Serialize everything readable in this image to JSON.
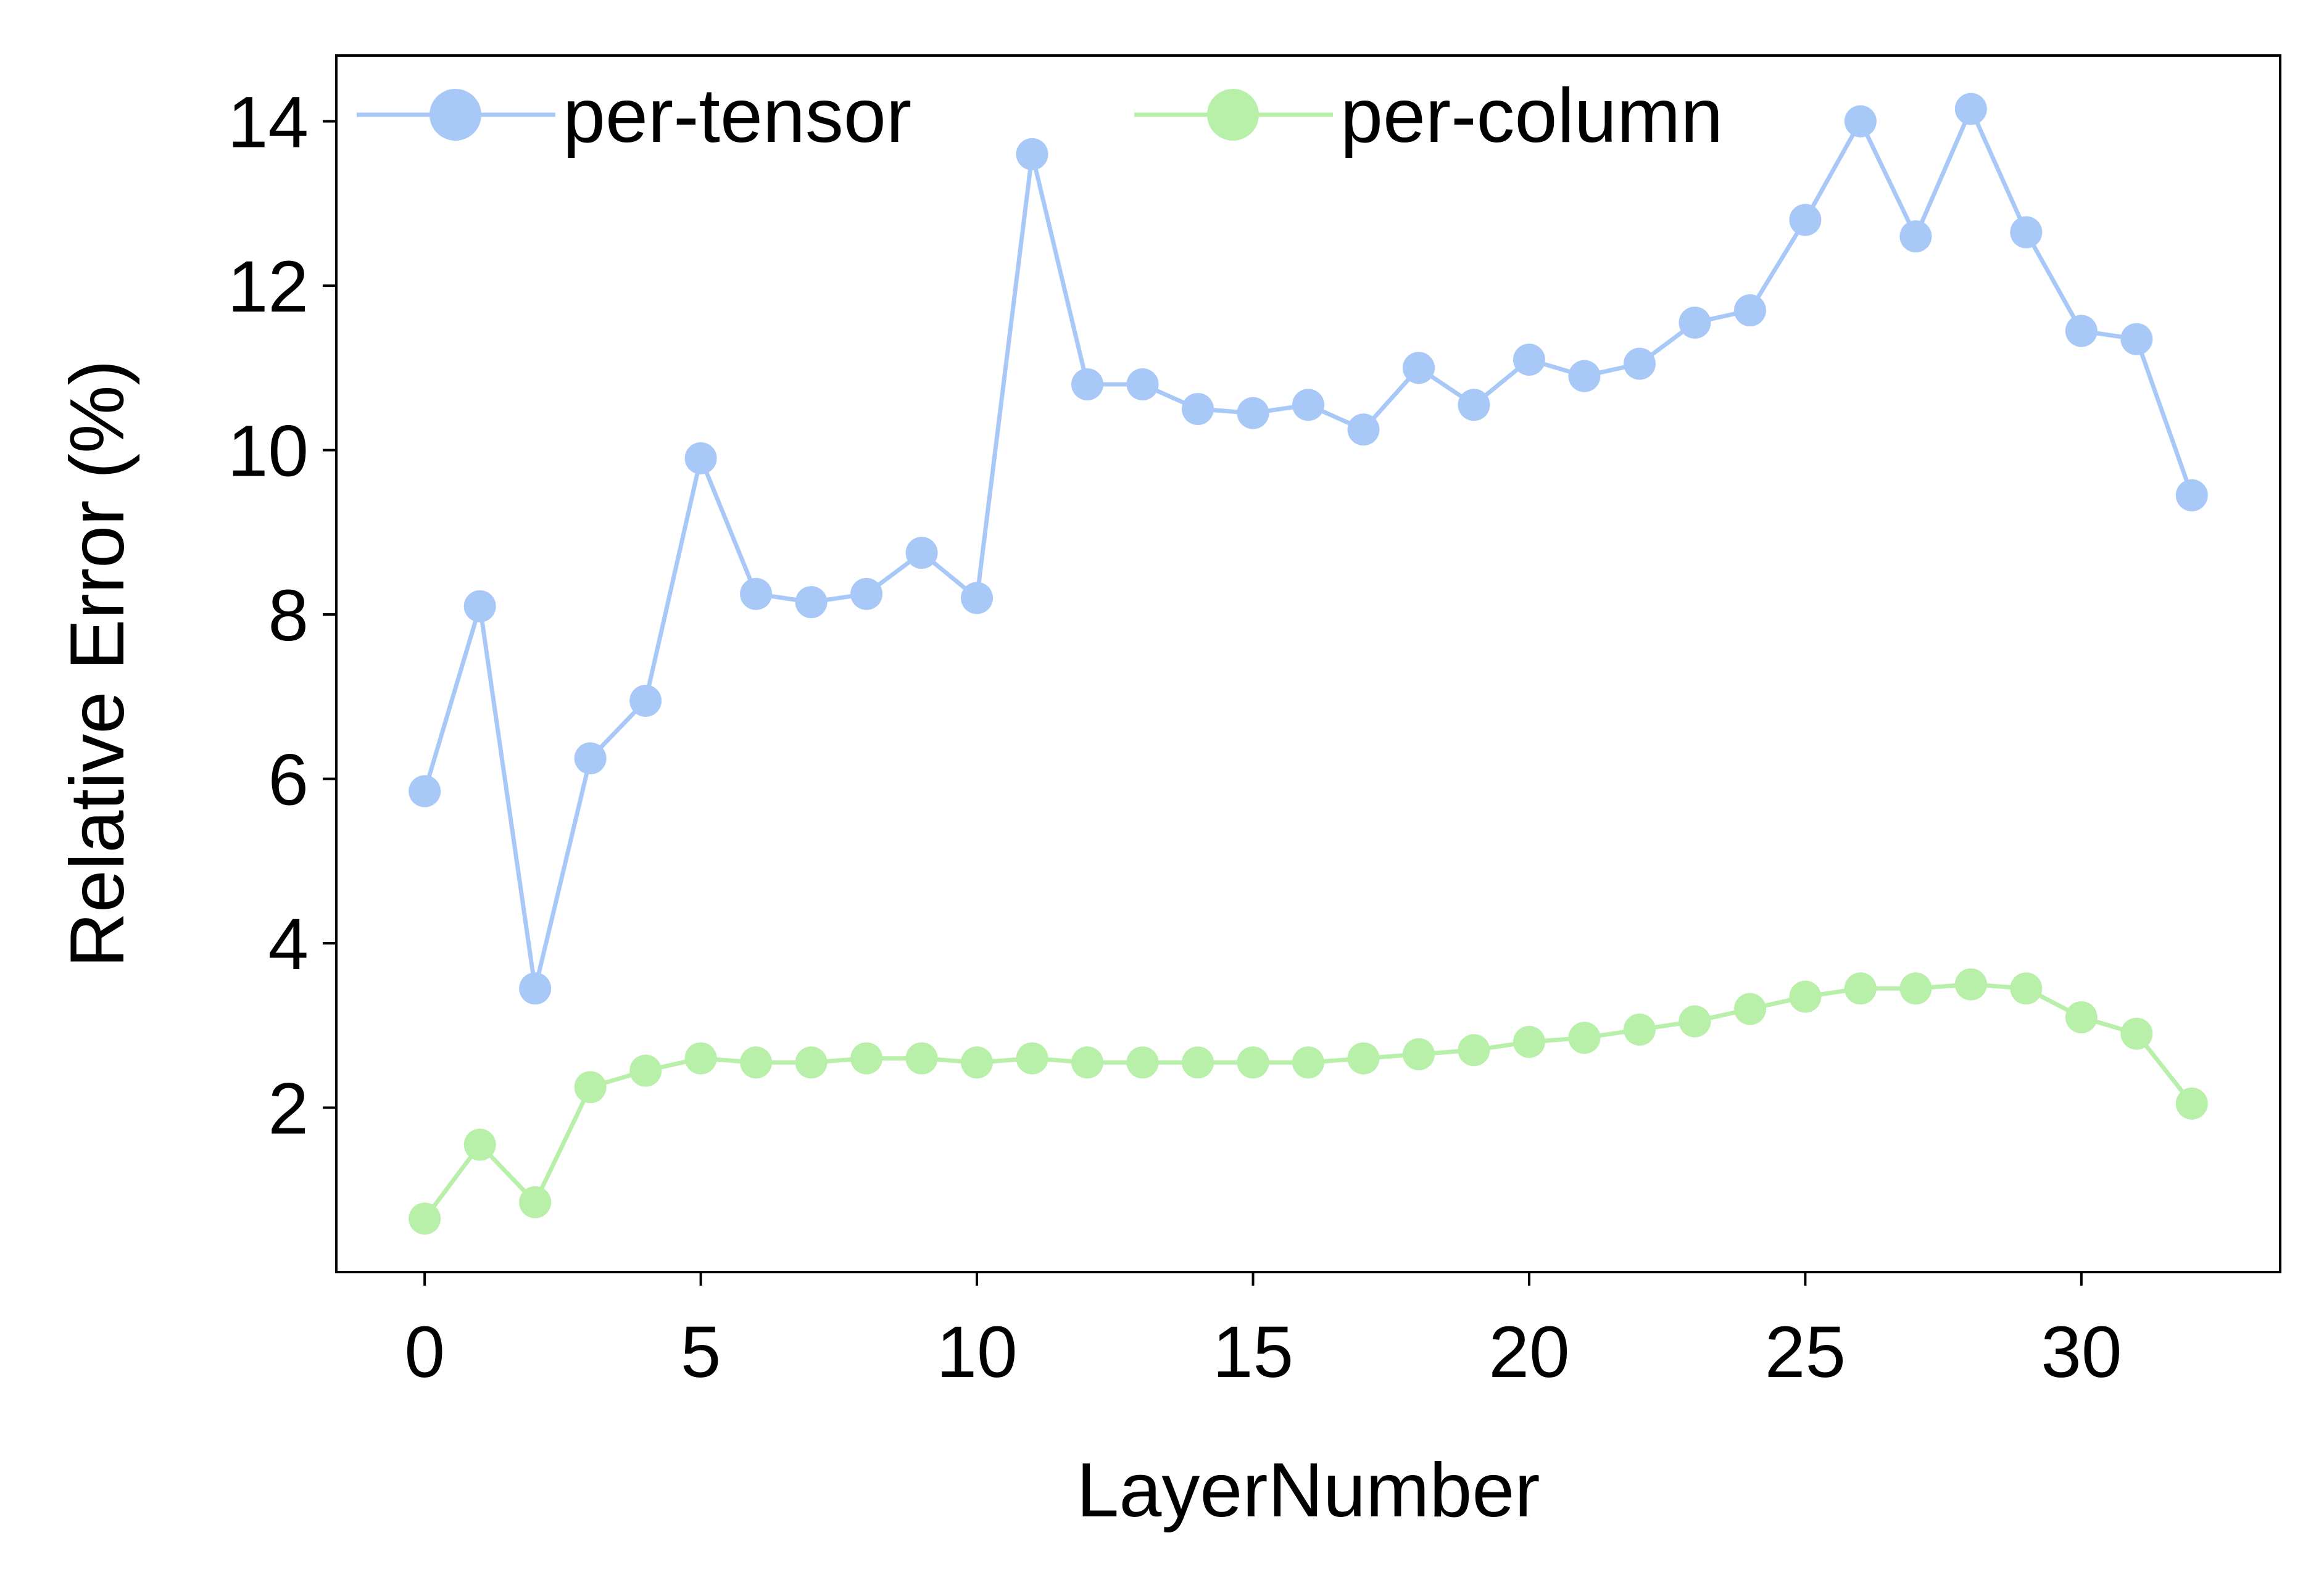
{
  "chart_data": {
    "type": "line",
    "xlabel": "LayerNumber",
    "ylabel": "Relative Error (%)",
    "xlim": [
      -1.6,
      33.6
    ],
    "ylim": [
      0.0,
      14.8
    ],
    "xticks": [
      0,
      5,
      10,
      15,
      20,
      25,
      30
    ],
    "yticks": [
      2,
      4,
      6,
      8,
      10,
      12,
      14
    ],
    "grid": false,
    "legend": "top, two columns",
    "x": [
      0,
      1,
      2,
      3,
      4,
      5,
      6,
      7,
      8,
      9,
      10,
      11,
      12,
      13,
      14,
      15,
      16,
      17,
      18,
      19,
      20,
      21,
      22,
      23,
      24,
      25,
      26,
      27,
      28,
      29,
      30,
      31,
      32
    ],
    "series": [
      {
        "name": "per-tensor",
        "color": "#a8c8f8",
        "values": [
          5.85,
          8.1,
          3.45,
          6.25,
          6.95,
          9.9,
          8.25,
          8.15,
          8.25,
          8.75,
          8.2,
          13.6,
          10.8,
          10.8,
          10.5,
          10.45,
          10.55,
          10.25,
          11.0,
          10.55,
          11.1,
          10.9,
          11.05,
          11.55,
          11.7,
          12.8,
          14.0,
          12.6,
          14.15,
          12.65,
          11.45,
          11.35,
          9.45
        ]
      },
      {
        "name": "per-column",
        "color": "#b8f0aa",
        "values": [
          0.65,
          1.55,
          0.85,
          2.25,
          2.45,
          2.6,
          2.55,
          2.55,
          2.6,
          2.6,
          2.55,
          2.6,
          2.55,
          2.55,
          2.55,
          2.55,
          2.55,
          2.6,
          2.65,
          2.7,
          2.8,
          2.85,
          2.95,
          3.05,
          3.2,
          3.35,
          3.45,
          3.45,
          3.5,
          3.45,
          3.1,
          2.9,
          2.05
        ]
      }
    ]
  }
}
